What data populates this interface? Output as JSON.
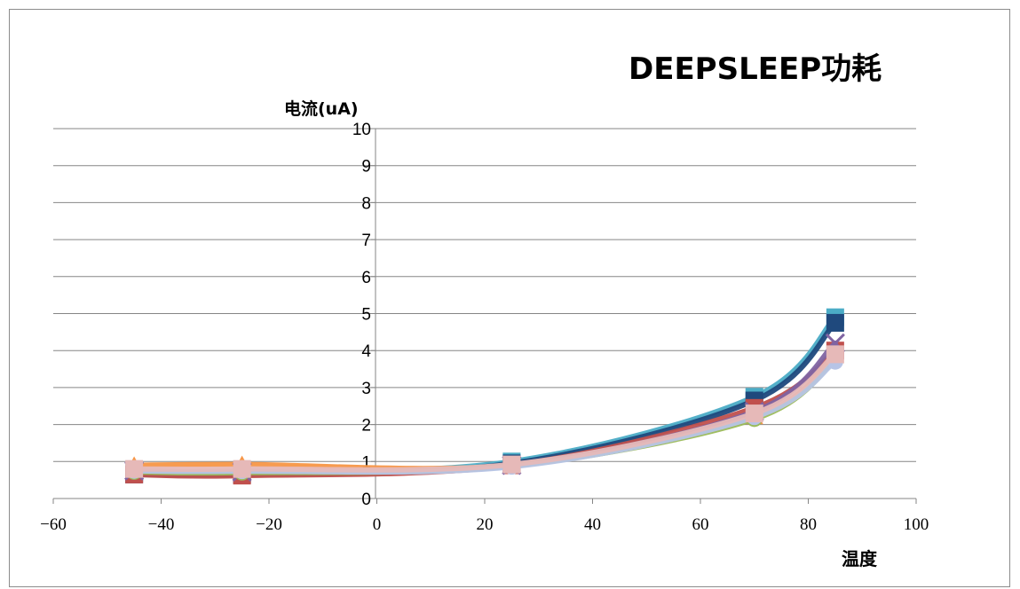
{
  "chart_data": {
    "type": "line",
    "title": "DEEPSLEEP功耗",
    "xlabel": "温度",
    "ylabel": "电流(uA)",
    "xlim": [
      -60,
      100
    ],
    "ylim": [
      0,
      10
    ],
    "x_ticks": [
      -60,
      -40,
      -20,
      0,
      20,
      40,
      60,
      80,
      100
    ],
    "y_ticks": [
      0,
      1,
      2,
      3,
      4,
      5,
      6,
      7,
      8,
      9,
      10
    ],
    "grid": "horizontal",
    "legend": "none",
    "x": [
      -45,
      -25,
      25,
      70,
      85
    ],
    "series": [
      {
        "color": "#4bacc6",
        "marker": "square",
        "values": [
          0.7,
          0.7,
          1.0,
          2.75,
          4.9
        ]
      },
      {
        "color": "#1f497d",
        "marker": "square",
        "values": [
          0.65,
          0.65,
          0.95,
          2.65,
          4.75
        ]
      },
      {
        "color": "#c0504d",
        "marker": "square",
        "values": [
          0.65,
          0.62,
          0.9,
          2.45,
          4.0
        ]
      },
      {
        "color": "#f79646",
        "marker": "triangle",
        "values": [
          0.9,
          0.92,
          0.9,
          2.2,
          3.85
        ]
      },
      {
        "color": "#8064a2",
        "marker": "x",
        "values": [
          0.75,
          0.72,
          0.9,
          2.35,
          4.2
        ]
      },
      {
        "color": "#9bbb59",
        "marker": "circle",
        "values": [
          0.72,
          0.7,
          0.88,
          2.15,
          3.75
        ]
      },
      {
        "color": "#b7c4e6",
        "marker": "circle",
        "values": [
          0.75,
          0.74,
          0.86,
          2.2,
          3.7
        ]
      },
      {
        "color": "#e6b9b8",
        "marker": "square",
        "values": [
          0.8,
          0.8,
          0.92,
          2.3,
          3.9
        ]
      }
    ]
  }
}
